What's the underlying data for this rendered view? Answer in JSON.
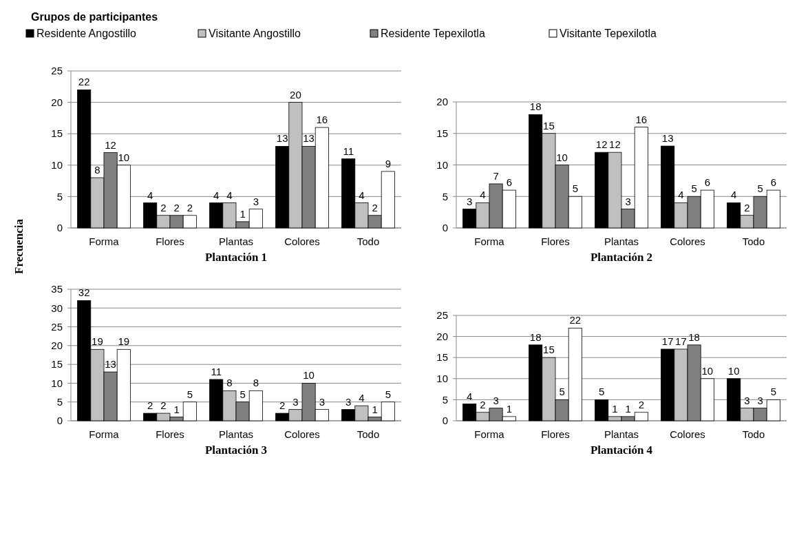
{
  "chart_data": [
    {
      "type": "bar",
      "title": "Plantación 1",
      "ylabel": "Frecuencia",
      "legend_title": "Grupos de participantes",
      "legend": "top",
      "grid": "y",
      "data_labels": true,
      "categories": [
        "Forma",
        "Flores",
        "Plantas",
        "Colores",
        "Todo"
      ],
      "ylim": [
        0,
        25
      ],
      "yticks": [
        0,
        5,
        10,
        15,
        20,
        25
      ],
      "series": [
        {
          "name": "Residente Angostillo",
          "color": "#000000",
          "values": [
            22,
            4,
            4,
            13,
            11
          ]
        },
        {
          "name": "Visitante Angostillo",
          "color": "#c0c0c0",
          "values": [
            8,
            2,
            4,
            20,
            4
          ]
        },
        {
          "name": "Residente Tepexilotla",
          "color": "#808080",
          "values": [
            12,
            2,
            1,
            13,
            2
          ]
        },
        {
          "name": "Visitante Tepexilotla",
          "color": "#ffffff",
          "values": [
            10,
            2,
            3,
            16,
            9
          ]
        }
      ]
    },
    {
      "type": "bar",
      "title": "Plantación 2",
      "grid": "y",
      "data_labels": true,
      "categories": [
        "Forma",
        "Flores",
        "Plantas",
        "Colores",
        "Todo"
      ],
      "ylim": [
        0,
        20
      ],
      "yticks": [
        0,
        5,
        10,
        15,
        20
      ],
      "series": [
        {
          "color": "#000000",
          "values": [
            3,
            18,
            12,
            13,
            4
          ]
        },
        {
          "color": "#c0c0c0",
          "values": [
            4,
            15,
            12,
            4,
            2
          ]
        },
        {
          "color": "#808080",
          "values": [
            7,
            10,
            3,
            5,
            5
          ]
        },
        {
          "color": "#ffffff",
          "values": [
            6,
            5,
            16,
            6,
            6
          ]
        }
      ]
    },
    {
      "type": "bar",
      "title": "Plantación 3",
      "grid": "y",
      "data_labels": true,
      "categories": [
        "Forma",
        "Flores",
        "Plantas",
        "Colores",
        "Todo"
      ],
      "ylim": [
        0,
        35
      ],
      "yticks": [
        0,
        5,
        10,
        15,
        20,
        25,
        30,
        35
      ],
      "series": [
        {
          "color": "#000000",
          "values": [
            32,
            2,
            11,
            2,
            3
          ]
        },
        {
          "color": "#c0c0c0",
          "values": [
            19,
            2,
            8,
            3,
            4
          ]
        },
        {
          "color": "#808080",
          "values": [
            13,
            1,
            5,
            10,
            1
          ]
        },
        {
          "color": "#ffffff",
          "values": [
            19,
            5,
            8,
            3,
            5
          ]
        }
      ]
    },
    {
      "type": "bar",
      "title": "Plantación 4",
      "grid": "y",
      "data_labels": true,
      "categories": [
        "Forma",
        "Flores",
        "Plantas",
        "Colores",
        "Todo"
      ],
      "ylim": [
        0,
        25
      ],
      "yticks": [
        0,
        5,
        10,
        15,
        20,
        25
      ],
      "series": [
        {
          "color": "#000000",
          "values": [
            4,
            18,
            5,
            17,
            10
          ]
        },
        {
          "color": "#c0c0c0",
          "values": [
            2,
            15,
            1,
            17,
            3
          ]
        },
        {
          "color": "#808080",
          "values": [
            3,
            5,
            1,
            18,
            3
          ]
        },
        {
          "color": "#ffffff",
          "values": [
            1,
            22,
            2,
            10,
            5
          ]
        }
      ]
    }
  ]
}
